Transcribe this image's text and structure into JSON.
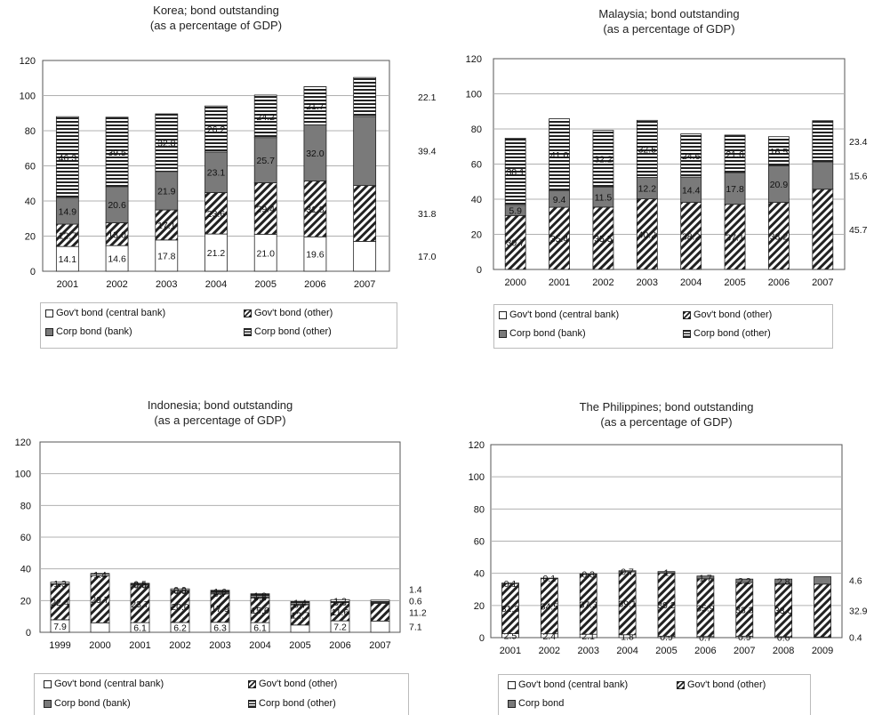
{
  "legend_text": {
    "central_bank": "Gov't bond (central bank)",
    "gov_other": "Gov't bond (other)",
    "corp_bank": "Corp bond (bank)",
    "corp_other": "Corp bond (other)",
    "corp": "Corp bond"
  },
  "pattern_colors": {
    "ink": "#222222",
    "bank_fill": "#7a7a7a",
    "gridline": "#b0b0b0"
  },
  "chart_data": [
    {
      "type": "bar",
      "stacked": true,
      "title": "Korea; bond outstanding",
      "subtitle": "(as a percentage of GDP)",
      "ylim": [
        0,
        120
      ],
      "yticks": [
        "0",
        "20",
        "40",
        "60",
        "80",
        "100",
        "120"
      ],
      "grid": true,
      "legend_position": "bottom",
      "categories": [
        "2001",
        "2002",
        "2003",
        "2004",
        "2005",
        "2006",
        "2007"
      ],
      "series": [
        {
          "key": "central_bank",
          "name": "Gov't bond (central bank)",
          "values": [
            14.1,
            14.6,
            17.8,
            21.2,
            21.0,
            19.6,
            17.0
          ],
          "labels": [
            "14.1",
            "14.6",
            "17.8",
            "21.2",
            "21.0",
            "19.6",
            ""
          ]
        },
        {
          "key": "gov_other",
          "name": "Gov't bond (other)",
          "values": [
            12.7,
            13.0,
            17.1,
            23.6,
            29.4,
            31.8,
            31.8
          ],
          "labels": [
            "12.7",
            "13.0",
            "17.1",
            "23.6",
            "29.4",
            "31.8",
            ""
          ]
        },
        {
          "key": "corp_bank",
          "name": "Corp bond (bank)",
          "values": [
            14.9,
            20.6,
            21.9,
            23.1,
            25.7,
            32.0,
            39.4
          ],
          "labels": [
            "14.9",
            "20.6",
            "21.9",
            "23.1",
            "25.7",
            "32.0",
            ""
          ]
        },
        {
          "key": "corp_other",
          "name": "Corp bond (other)",
          "values": [
            46.3,
            39.5,
            32.8,
            26.2,
            24.2,
            21.7,
            22.1
          ],
          "labels": [
            "46.3",
            "39.5",
            "32.8",
            "26.2",
            "24.2",
            "21.7",
            ""
          ]
        }
      ],
      "right_labels": [
        "17.0",
        "31.8",
        "39.4",
        "22.1"
      ]
    },
    {
      "type": "bar",
      "stacked": true,
      "title": "Malaysia; bond outstanding",
      "subtitle": "(as a percentage of GDP)",
      "ylim": [
        0,
        120
      ],
      "yticks": [
        "0",
        "20",
        "40",
        "60",
        "80",
        "100",
        "120"
      ],
      "grid": true,
      "legend_position": "bottom",
      "categories": [
        "2000",
        "2001",
        "2002",
        "2003",
        "2004",
        "2005",
        "2006",
        "2007"
      ],
      "series": [
        {
          "key": "central_bank",
          "name": "Gov't bond (central bank)",
          "values": [
            0,
            0,
            0,
            0,
            0,
            0,
            0,
            0
          ],
          "labels": [
            "",
            "",
            "",
            "",
            "",
            "",
            "",
            ""
          ]
        },
        {
          "key": "gov_other",
          "name": "Gov't bond (other)",
          "values": [
            30.7,
            35.4,
            35.5,
            40.2,
            38.2,
            37.1,
            38.2,
            45.7
          ],
          "labels": [
            "30.7",
            "35.4",
            "35.5",
            "40.2",
            "38.2",
            "37.1",
            "38.2",
            ""
          ]
        },
        {
          "key": "corp_bank",
          "name": "Corp bond (bank)",
          "values": [
            5.9,
            9.4,
            11.5,
            12.2,
            14.4,
            17.8,
            20.9,
            15.6
          ],
          "labels": [
            "5.9",
            "9.4",
            "11.5",
            "12.2",
            "14.4",
            "17.8",
            "20.9",
            ""
          ]
        },
        {
          "key": "corp_other",
          "name": "Corp bond (other)",
          "values": [
            38.1,
            41.0,
            32.2,
            32.5,
            24.6,
            21.6,
            16.5,
            23.4
          ],
          "labels": [
            "38.1",
            "41.0",
            "32.2",
            "32.5",
            "24.6",
            "21.6",
            "16.5",
            ""
          ]
        }
      ],
      "right_labels": [
        "45.7",
        "15.6",
        "23.4"
      ]
    },
    {
      "type": "bar",
      "stacked": true,
      "title": "Indonesia; bond outstanding",
      "subtitle": "(as a percentage of GDP)",
      "ylim": [
        0,
        120
      ],
      "yticks": [
        "0",
        "20",
        "40",
        "60",
        "80",
        "100",
        "120"
      ],
      "grid": true,
      "legend_position": "bottom",
      "categories": [
        "1999",
        "2000",
        "2001",
        "2002",
        "2003",
        "2004",
        "2005",
        "2006",
        "2007"
      ],
      "series": [
        {
          "key": "central_bank",
          "name": "Gov't bond (central bank)",
          "values": [
            7.9,
            6.0,
            6.1,
            6.2,
            6.3,
            6.1,
            4.6,
            7.2,
            7.1
          ],
          "labels": [
            "7.9",
            "",
            "6.1",
            "6.2",
            "6.3",
            "6.1",
            "",
            "7.2",
            ""
          ]
        },
        {
          "key": "gov_other",
          "name": "Gov't bond (other)",
          "values": [
            22.4,
            29.7,
            23.7,
            20.0,
            17.9,
            15.6,
            12.7,
            11.6,
            11.2
          ],
          "labels": [
            "22.4",
            "29.7",
            "23.7",
            "20.0",
            "17.9",
            "15.6",
            "12.7",
            "11.6",
            ""
          ]
        },
        {
          "key": "corp_bank",
          "name": "Corp bond (bank)",
          "values": [
            0,
            0,
            0.6,
            0.3,
            0.7,
            0.8,
            0.7,
            0.6,
            0.6
          ],
          "labels": [
            "",
            "",
            "0.6",
            "0.3",
            "0.7",
            "0.8",
            "0.7",
            "0.6",
            ""
          ]
        },
        {
          "key": "corp_other",
          "name": "Corp bond (other)",
          "values": [
            1.3,
            1.4,
            0.5,
            0.9,
            1.6,
            1.8,
            1.4,
            1.2,
            1.4
          ],
          "labels": [
            "1.3",
            "1.4",
            "0.5",
            "0.9",
            "1.6",
            "1.8",
            "1.4",
            "1.2",
            ""
          ]
        }
      ],
      "right_labels": [
        "7.1",
        "11.2",
        "0.6",
        "1.4"
      ]
    },
    {
      "type": "bar",
      "stacked": true,
      "title": "The Philippines; bond outstanding",
      "subtitle": "(as a percentage of GDP)",
      "ylim": [
        0,
        120
      ],
      "yticks": [
        "0",
        "20",
        "40",
        "60",
        "80",
        "100",
        "120"
      ],
      "grid": true,
      "legend_position": "bottom",
      "categories": [
        "2001",
        "2002",
        "2003",
        "2004",
        "2005",
        "2006",
        "2007",
        "2008",
        "2009"
      ],
      "series": [
        {
          "key": "central_bank",
          "name": "Gov't bond (central bank)",
          "values": [
            2.5,
            2.4,
            2.1,
            1.8,
            0.9,
            0.7,
            0.9,
            0.6,
            0.4
          ],
          "labels": [
            "2.5",
            "2.4",
            "2.1",
            "1.8",
            "0.9",
            "0.7",
            "0.9",
            "0.6",
            ""
          ]
        },
        {
          "key": "gov_other",
          "name": "Gov't bond (other)",
          "values": [
            31.3,
            34.5,
            37.3,
            39.1,
            39.2,
            35.9,
            33.3,
            33.0,
            32.9
          ],
          "labels": [
            "31.3",
            "34.5",
            "37.3",
            "39.1",
            "39.2",
            "35.9",
            "33.3",
            "33.0",
            ""
          ]
        },
        {
          "key": "corp",
          "name": "Corp bond",
          "values": [
            0.1,
            0.1,
            0.3,
            0.7,
            1,
            1.7,
            2.2,
            2.8,
            4.6
          ],
          "labels": [
            "0.1",
            "0.1",
            "0.3",
            "0.7",
            "1",
            "1.7",
            "2.2",
            "2.8",
            ""
          ]
        }
      ],
      "right_labels": [
        "0.4",
        "32.9",
        "4.6"
      ]
    }
  ]
}
